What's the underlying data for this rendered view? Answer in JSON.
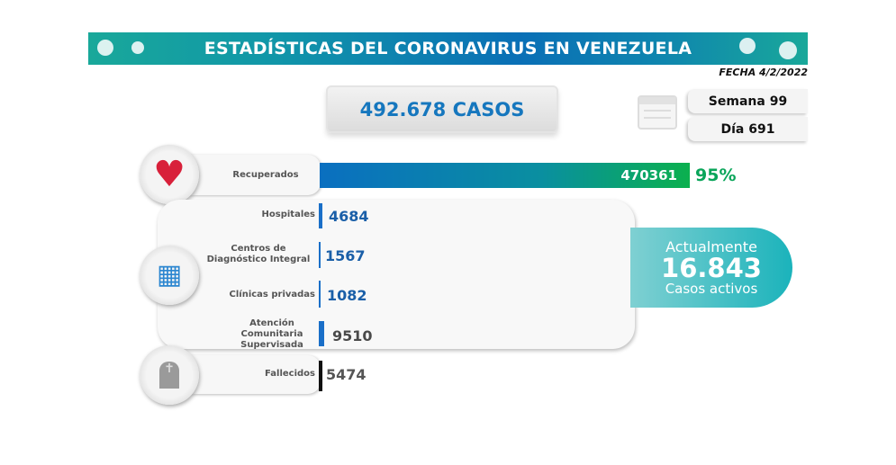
{
  "header": {
    "title": "ESTADÍSTICAS DEL CORONAVIRUS EN VENEZUELA",
    "date": "FECHA 4/2/2022"
  },
  "summary": {
    "total_cases": "492.678 CASOS",
    "week": "Semana 99",
    "day": "Día 691"
  },
  "recovered": {
    "label": "Recuperados",
    "value": "470361",
    "percent": "95%",
    "bar_fraction": 0.95
  },
  "active_breakdown": [
    {
      "label": "Hospitales",
      "value": "4684",
      "color": "#1a5fa8"
    },
    {
      "label": "Centros de Diagnóstico Integral",
      "value": "1567",
      "color": "#1a5fa8"
    },
    {
      "label": "Clínicas privadas",
      "value": "1082",
      "color": "#1a5fa8"
    },
    {
      "label": "Atención Comunitaria Supervisada",
      "value": "9510",
      "color": "#4a4a4a"
    }
  ],
  "active": {
    "prefix": "Actualmente",
    "value": "16.843",
    "suffix": "Casos activos"
  },
  "deaths": {
    "label": "Fallecidos",
    "value": "5474"
  },
  "colors": {
    "banner_blue": "#0a6fb6",
    "banner_teal": "#19a89a",
    "value_blue": "#1a5fa8",
    "percent_green": "#0aa55a",
    "active_teal": "#1bb3bb"
  }
}
